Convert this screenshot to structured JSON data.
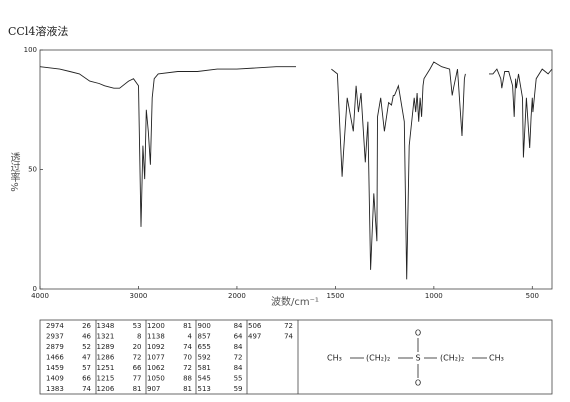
{
  "chart_data": {
    "type": "line",
    "title": "CCl4溶液法",
    "x_label": "波数/cm⁻¹",
    "y_label": "透过率%",
    "x": [
      4000,
      3800,
      3697,
      3600,
      3495,
      3400,
      3343,
      3250,
      3192,
      3100,
      3050,
      3000,
      2974,
      2955,
      2937,
      2920,
      2900,
      2879,
      2860,
      2840,
      2800,
      2600,
      2400,
      2200,
      2000,
      1800,
      1700,
      1600,
      1520,
      1490,
      1466,
      1459,
      1440,
      1409,
      1395,
      1383,
      1370,
      1348,
      1335,
      1321,
      1305,
      1289,
      1286,
      1270,
      1251,
      1230,
      1215,
      1206,
      1200,
      1180,
      1150,
      1138,
      1125,
      1100,
      1092,
      1085,
      1077,
      1070,
      1062,
      1055,
      1050,
      1020,
      1000,
      960,
      920,
      907,
      900,
      880,
      857,
      845,
      840,
      780,
      720,
      700,
      680,
      660,
      655,
      640,
      620,
      600,
      592,
      585,
      581,
      570,
      550,
      545,
      530,
      513,
      506,
      500,
      497,
      480,
      450,
      420,
      400
    ],
    "series": [
      {
        "color": "#222222",
        "values": [
          93,
          92,
          91,
          90,
          87,
          86,
          85,
          84,
          84,
          87,
          88,
          85,
          26,
          60,
          46,
          75,
          66,
          52,
          80,
          88,
          90,
          91,
          91,
          92,
          92,
          93,
          93,
          null,
          92,
          90,
          47,
          57,
          80,
          66,
          85,
          74,
          82,
          53,
          70,
          8,
          40,
          20,
          72,
          80,
          66,
          78,
          77,
          81,
          81,
          85,
          70,
          4,
          60,
          80,
          74,
          82,
          70,
          80,
          72,
          85,
          88,
          92,
          95,
          93,
          92,
          81,
          84,
          92,
          64,
          88,
          90,
          null,
          90,
          90,
          92,
          88,
          84,
          91,
          91,
          85,
          72,
          88,
          84,
          90,
          80,
          55,
          80,
          59,
          72,
          80,
          74,
          88,
          92,
          90,
          92
        ]
      }
    ],
    "xlim": [
      4000,
      400
    ],
    "xticks": [
      4000,
      3000,
      2000,
      1500,
      1000,
      500
    ],
    "x_scale_change": 2000,
    "ylim": [
      0,
      100
    ],
    "yticks": [
      0,
      50,
      100
    ]
  },
  "peak_table": {
    "rows": [
      [
        2974,
        26
      ],
      [
        2937,
        46
      ],
      [
        2879,
        52
      ],
      [
        1466,
        47
      ],
      [
        1459,
        57
      ],
      [
        1409,
        66
      ],
      [
        1383,
        74
      ],
      [
        1348,
        53
      ],
      [
        1321,
        8
      ],
      [
        1289,
        20
      ],
      [
        1286,
        72
      ],
      [
        1251,
        66
      ],
      [
        1215,
        77
      ],
      [
        1206,
        81
      ],
      [
        1200,
        81
      ],
      [
        1138,
        4
      ],
      [
        1092,
        74
      ],
      [
        1077,
        70
      ],
      [
        1062,
        72
      ],
      [
        1050,
        88
      ],
      [
        907,
        81
      ],
      [
        900,
        84
      ],
      [
        857,
        64
      ],
      [
        655,
        84
      ],
      [
        592,
        72
      ],
      [
        581,
        84
      ],
      [
        545,
        55
      ],
      [
        513,
        59
      ],
      [
        506,
        72
      ],
      [
        497,
        74
      ]
    ]
  },
  "structure": {
    "left_end": "CH₃",
    "left_chain": "(CH₂)₂",
    "center": "S",
    "top": "O",
    "bottom": "O",
    "right_chain": "(CH₂)₂",
    "right_end": "CH₃"
  }
}
